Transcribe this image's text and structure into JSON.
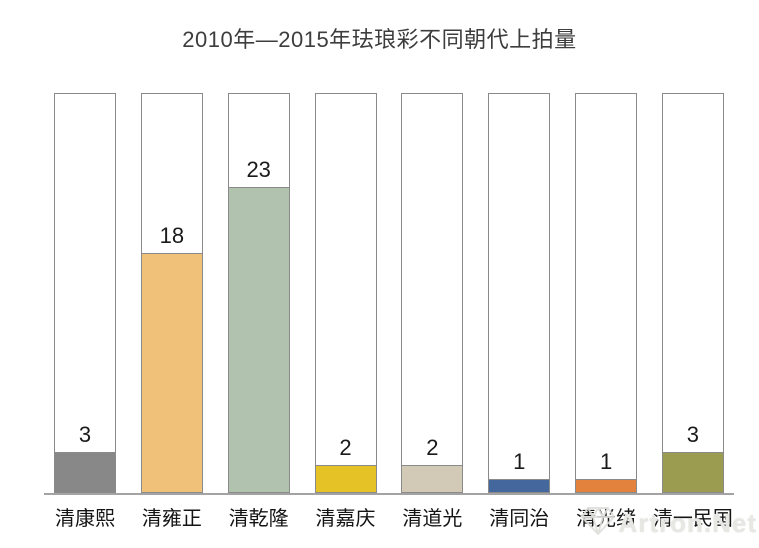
{
  "title": "2010年—2015年珐琅彩不同朝代上拍量",
  "watermark": "Artron.Net",
  "chart_data": {
    "type": "bar",
    "title": "2010年—2015年珐琅彩不同朝代上拍量",
    "categories": [
      "清康熙",
      "清雍正",
      "清乾隆",
      "清嘉庆",
      "清道光",
      "清同治",
      "清光绪",
      "清一民国"
    ],
    "values": [
      3,
      18,
      23,
      2,
      2,
      1,
      1,
      3
    ],
    "bar_colors": [
      "#888888",
      "#f0c279",
      "#b1c3ae",
      "#e5c226",
      "#d2cab6",
      "#44679d",
      "#e2823d",
      "#9b9c4f"
    ],
    "value_labels": [
      "3",
      "18",
      "23",
      "2",
      "2",
      "1",
      "1",
      "3"
    ],
    "xlabel": "",
    "ylabel": "",
    "ylim": [
      0,
      30
    ],
    "grid": false,
    "legend": "none",
    "style_note": "each colored bar rises from the baseline inside a full-height white column outlined in gray; value label printed just above each bar"
  }
}
